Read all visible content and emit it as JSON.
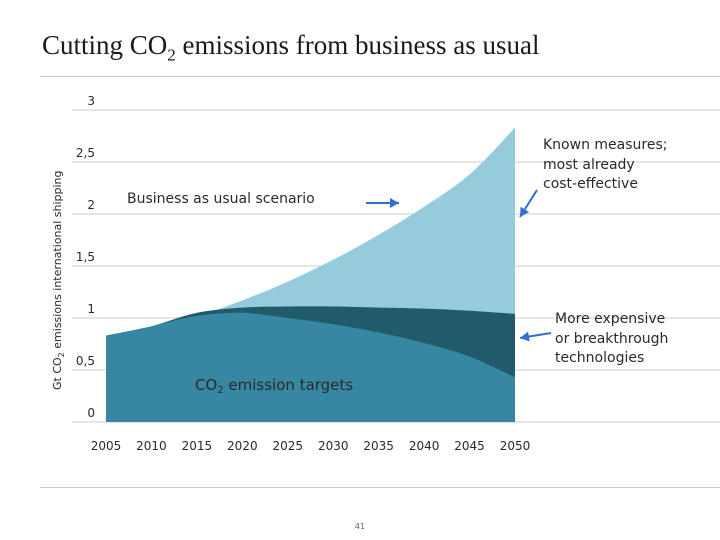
{
  "slide": {
    "title_prefix": "Cutting CO",
    "title_sub": "2",
    "title_suffix": " emissions from business as usual",
    "page_number": "41"
  },
  "colors": {
    "bau": "#96cbdc",
    "known": "#96cbdc",
    "expensive": "#215a6b",
    "targets": "#3787a2",
    "grid": "#9a9a9a",
    "arrow": "#2e6fd1",
    "text": "#2a2a2a"
  },
  "chart_data": {
    "type": "area",
    "title": "",
    "ylabel_prefix": "Gt CO",
    "ylabel_sub": "2",
    "ylabel_suffix": " emissions international shipping",
    "xlabel": "",
    "x": [
      2005,
      2010,
      2015,
      2020,
      2025,
      2030,
      2035,
      2040,
      2045,
      2050
    ],
    "ylim": [
      0,
      3
    ],
    "yticks": [
      "0",
      "0,5",
      "1",
      "1,5",
      "2",
      "2,5",
      "3"
    ],
    "xticks": [
      "2005",
      "2010",
      "2015",
      "2020",
      "2025",
      "2030",
      "2035",
      "2040",
      "2045",
      "2050"
    ],
    "grid": true,
    "series": [
      {
        "name": "Business as usual scenario",
        "values": [
          0.83,
          0.92,
          1.02,
          1.17,
          1.35,
          1.56,
          1.8,
          2.07,
          2.38,
          2.83
        ]
      },
      {
        "name": "More expensive or breakthrough technologies",
        "values": [
          0.83,
          0.92,
          1.05,
          1.1,
          1.11,
          1.11,
          1.1,
          1.09,
          1.07,
          1.04
        ]
      },
      {
        "name": "CO2 emission targets",
        "values": [
          0.83,
          0.92,
          1.02,
          1.05,
          1.0,
          0.94,
          0.86,
          0.76,
          0.63,
          0.43
        ]
      }
    ],
    "annotations": {
      "bau_label": "Business as usual scenario",
      "known_line1": "Known measures;",
      "known_line2": "most already",
      "known_line3": "cost-effective",
      "expensive_line1": "More expensive",
      "expensive_line2": "or breakthrough",
      "expensive_line3": "technologies",
      "targets_prefix": "CO",
      "targets_sub": "2",
      "targets_suffix": " emission targets"
    }
  }
}
